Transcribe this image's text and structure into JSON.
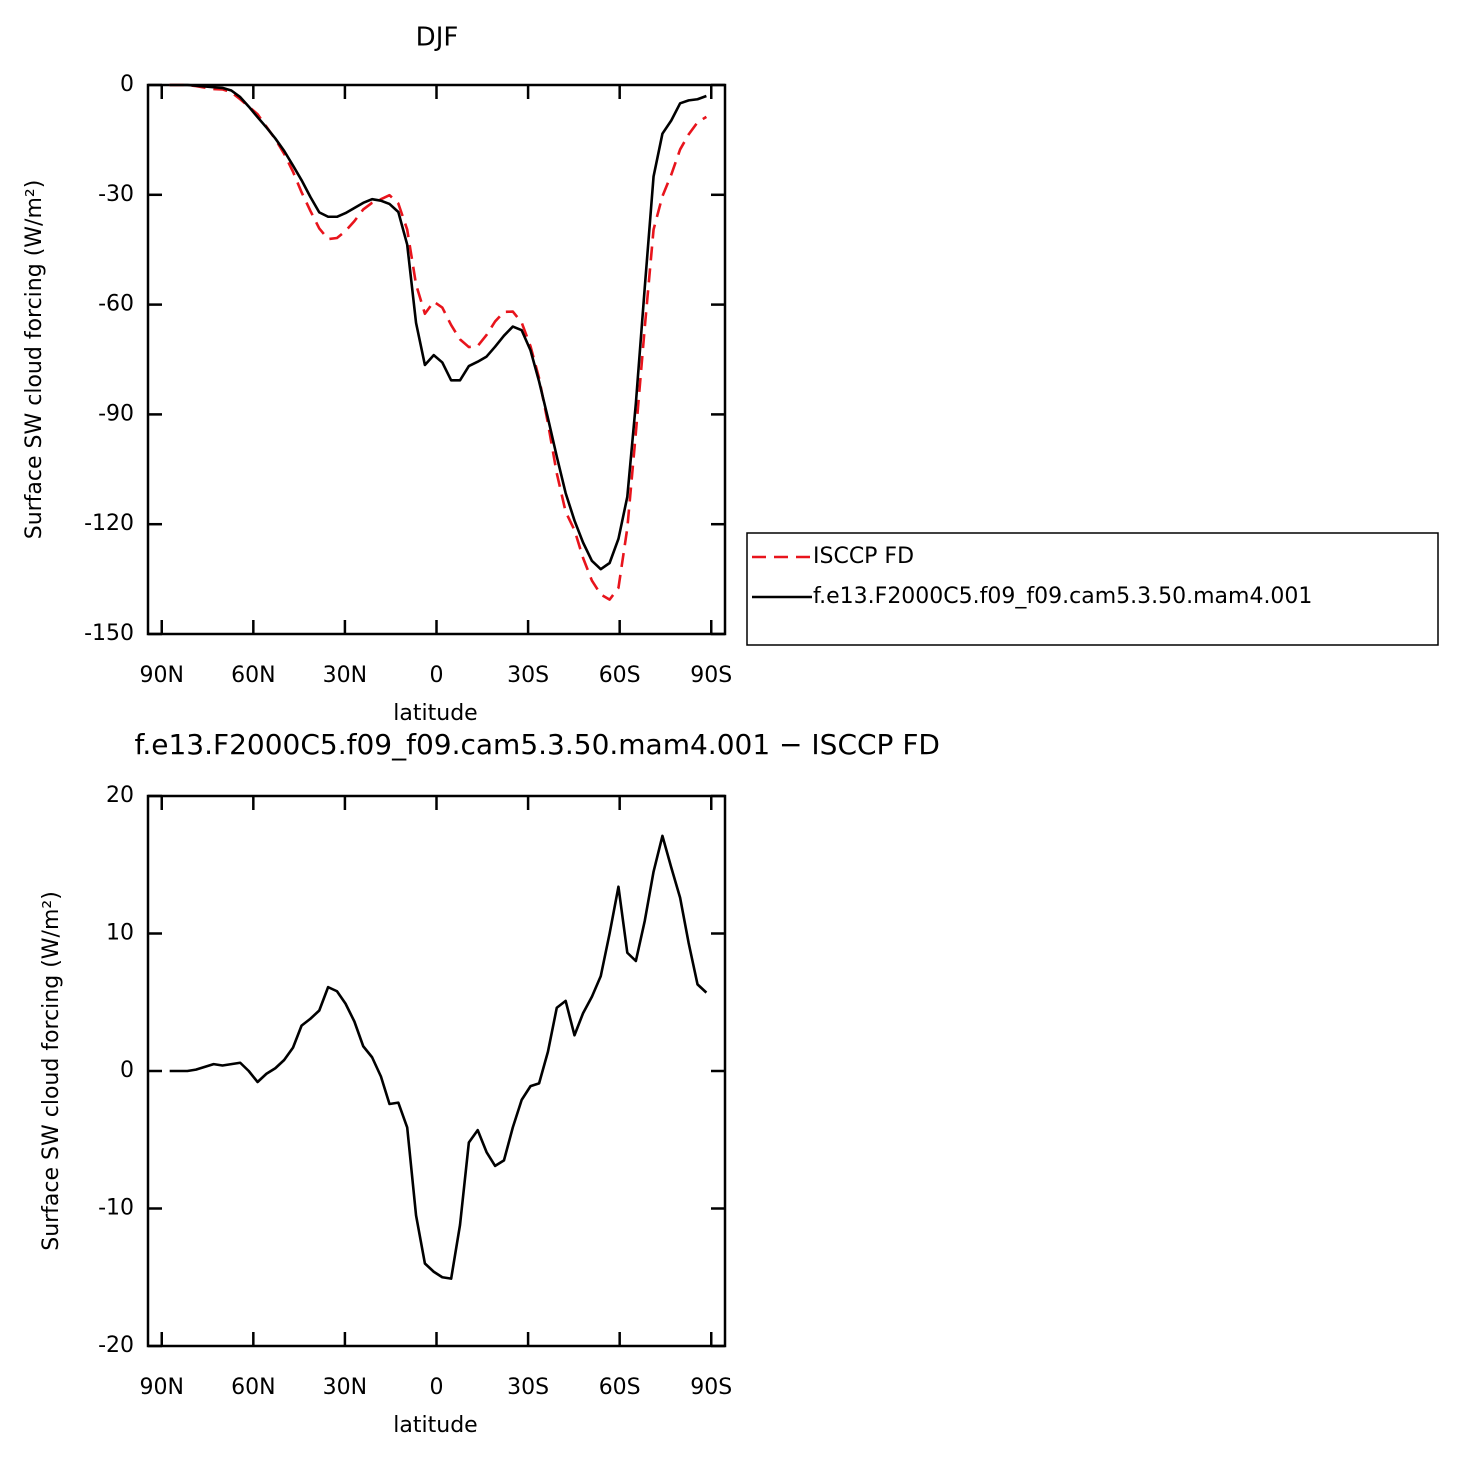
{
  "chart_data": [
    {
      "type": "line",
      "title": "DJF",
      "xlabel": "latitude",
      "ylabel": "Surface SW cloud forcing (W/m²)",
      "x": [
        87.4,
        84.5,
        81.6,
        78.8,
        75.9,
        73.0,
        70.1,
        67.2,
        64.3,
        61.5,
        58.6,
        55.7,
        52.8,
        49.9,
        47.0,
        44.2,
        41.3,
        38.4,
        35.5,
        32.6,
        29.8,
        26.9,
        24.0,
        21.1,
        18.2,
        15.4,
        12.5,
        9.6,
        6.7,
        3.8,
        0.9,
        -1.9,
        -4.8,
        -7.7,
        -10.6,
        -13.5,
        -16.4,
        -19.2,
        -22.1,
        -25.0,
        -27.9,
        -30.8,
        -33.6,
        -36.5,
        -39.4,
        -42.3,
        -45.2,
        -48.0,
        -50.9,
        -53.8,
        -56.7,
        -59.6,
        -62.5,
        -65.3,
        -68.2,
        -71.1,
        -74.0,
        -76.9,
        -79.8,
        -82.6,
        -85.5,
        -88.4
      ],
      "series": [
        {
          "name": "ISCCP FD",
          "color": "#e8141c",
          "linestyle": "dashed",
          "values": [
            0,
            0,
            0,
            -0.3,
            -0.7,
            -1.1,
            -1.2,
            -2.0,
            -3.9,
            -5.9,
            -8.0,
            -11.4,
            -14.8,
            -18.8,
            -23.7,
            -29.3,
            -34.4,
            -39.2,
            -42.1,
            -41.8,
            -39.9,
            -37.2,
            -34.0,
            -32.2,
            -31.2,
            -30.1,
            -32.4,
            -39.5,
            -54.5,
            -62.5,
            -59.2,
            -60.8,
            -65.6,
            -69.5,
            -71.6,
            -71.3,
            -68.3,
            -64.6,
            -62.0,
            -61.9,
            -64.9,
            -71.4,
            -80.1,
            -92.4,
            -106.1,
            -116.6,
            -121.6,
            -129.2,
            -135.4,
            -139.2,
            -140.6,
            -137.4,
            -121.1,
            -95,
            -66.4,
            -39.5,
            -30.4,
            -24.5,
            -17.6,
            -13.5,
            -10.2,
            -8.7
          ]
        },
        {
          "name": "f.e13.F2000C5.f09_f09.cam5.3.50.mam4.001",
          "color": "#000000",
          "linestyle": "solid",
          "values": [
            0,
            0,
            0,
            -0.2,
            -0.4,
            -0.6,
            -0.8,
            -1.5,
            -3.3,
            -5.9,
            -8.8,
            -11.6,
            -14.6,
            -18,
            -22,
            -26,
            -30.6,
            -34.8,
            -36,
            -36,
            -35,
            -33.6,
            -32.2,
            -31.2,
            -31.6,
            -32.5,
            -34.7,
            -43.6,
            -65,
            -76.5,
            -73.8,
            -75.8,
            -80.7,
            -80.7,
            -76.8,
            -75.6,
            -74.2,
            -71.5,
            -68.5,
            -66,
            -67,
            -72.5,
            -81,
            -91,
            -101.5,
            -111.5,
            -119,
            -125,
            -130,
            -132.3,
            -130.6,
            -124,
            -112.5,
            -87,
            -55.5,
            -25,
            -13.3,
            -9.7,
            -5,
            -4.2,
            -3.9,
            -3
          ]
        }
      ],
      "xlim": [
        94.5,
        -94.5
      ],
      "xticks": [
        {
          "value": 90,
          "label": "90N"
        },
        {
          "value": 60,
          "label": "60N"
        },
        {
          "value": 30,
          "label": "30N"
        },
        0,
        {
          "value": -30,
          "label": "30S"
        },
        {
          "value": -60,
          "label": "60S"
        },
        {
          "value": -90,
          "label": "90S"
        }
      ],
      "ylim": [
        -150,
        0
      ],
      "yticks": [
        0,
        -30,
        -60,
        -90,
        -120,
        -150
      ],
      "legend": "right"
    },
    {
      "type": "line",
      "title": "f.e13.F2000C5.f09_f09.cam5.3.50.mam4.001 − ISCCP FD",
      "xlabel": "latitude",
      "ylabel": "Surface SW cloud forcing (W/m²)",
      "x": [
        87.4,
        84.5,
        81.6,
        78.8,
        75.9,
        73.0,
        70.1,
        67.2,
        64.3,
        61.5,
        58.6,
        55.7,
        52.8,
        49.9,
        47.0,
        44.2,
        41.3,
        38.4,
        35.5,
        32.6,
        29.8,
        26.9,
        24.0,
        21.1,
        18.2,
        15.4,
        12.5,
        9.6,
        6.7,
        3.8,
        0.9,
        -1.9,
        -4.8,
        -7.7,
        -10.6,
        -13.5,
        -16.4,
        -19.2,
        -22.1,
        -25.0,
        -27.9,
        -30.8,
        -33.6,
        -36.5,
        -39.4,
        -42.3,
        -45.2,
        -48.0,
        -50.9,
        -53.8,
        -56.7,
        -59.6,
        -62.5,
        -65.3,
        -68.2,
        -71.1,
        -74.0,
        -76.9,
        -79.8,
        -82.6,
        -85.5,
        -88.4
      ],
      "series": [
        {
          "color": "#000000",
          "linestyle": "solid",
          "values": [
            0,
            0,
            0,
            0.1,
            0.3,
            0.5,
            0.4,
            0.5,
            0.6,
            0,
            -0.8,
            -0.2,
            0.2,
            0.8,
            1.7,
            3.3,
            3.8,
            4.4,
            6.1,
            5.8,
            4.9,
            3.6,
            1.8,
            1.0,
            -0.4,
            -2.4,
            -2.3,
            -4.1,
            -10.5,
            -14,
            -14.6,
            -15,
            -15.1,
            -11.2,
            -5.2,
            -4.3,
            -5.9,
            -6.9,
            -6.5,
            -4.1,
            -2.1,
            -1.1,
            -0.9,
            1.4,
            4.6,
            5.1,
            2.6,
            4.2,
            5.4,
            6.9,
            10.0,
            13.4,
            8.6,
            8.0,
            10.9,
            14.5,
            17.1,
            14.8,
            12.6,
            9.3,
            6.3,
            5.7
          ]
        }
      ],
      "xlim": [
        94.5,
        -94.5
      ],
      "xticks": [
        {
          "value": 90,
          "label": "90N"
        },
        {
          "value": 60,
          "label": "60N"
        },
        {
          "value": 30,
          "label": "30N"
        },
        0,
        {
          "value": -30,
          "label": "30S"
        },
        {
          "value": -60,
          "label": "60S"
        },
        {
          "value": -90,
          "label": "90S"
        }
      ],
      "ylim": [
        -20,
        20
      ],
      "yticks": [
        20,
        10,
        0,
        -10,
        -20
      ]
    }
  ]
}
